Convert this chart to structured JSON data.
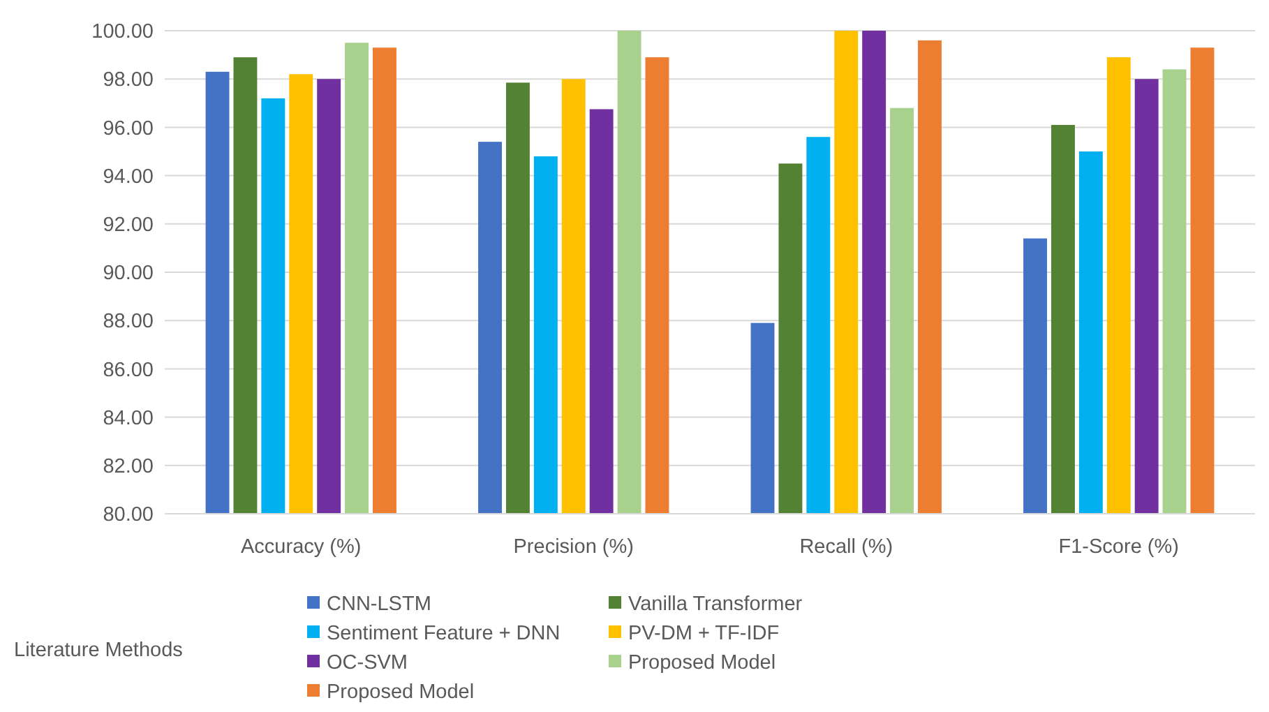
{
  "chart_data": {
    "type": "bar",
    "categories": [
      "Accuracy (%)",
      "Precision (%)",
      "Recall (%)",
      "F1-Score (%)"
    ],
    "series": [
      {
        "name": "CNN-LSTM",
        "color": "#4472c4",
        "values": [
          98.3,
          95.4,
          87.9,
          91.4
        ]
      },
      {
        "name": "Vanilla Transformer",
        "color": "#548235",
        "values": [
          98.9,
          97.85,
          94.5,
          96.1
        ]
      },
      {
        "name": "Sentiment Feature + DNN",
        "color": "#00b0f0",
        "values": [
          97.2,
          94.8,
          95.6,
          95.0
        ]
      },
      {
        "name": "PV-DM + TF-IDF",
        "color": "#ffc000",
        "values": [
          98.2,
          98.0,
          100,
          98.9
        ]
      },
      {
        "name": "OC-SVM",
        "color": "#7030a0",
        "values": [
          98.0,
          96.75,
          100,
          98.0
        ]
      },
      {
        "name": "Proposed Model",
        "color": "#a9d18e",
        "values": [
          99.5,
          100,
          96.8,
          98.4
        ]
      },
      {
        "name": "Proposed Model",
        "color": "#ed7d31",
        "values": [
          99.3,
          98.9,
          99.6,
          99.3
        ]
      }
    ],
    "ylim": [
      80,
      100
    ],
    "yticks": [
      {
        "value": 80,
        "label": "80.00"
      },
      {
        "value": 82,
        "label": "82.00"
      },
      {
        "value": 84,
        "label": "84.00"
      },
      {
        "value": 86,
        "label": "86.00"
      },
      {
        "value": 88,
        "label": "88.00"
      },
      {
        "value": 90,
        "label": "90.00"
      },
      {
        "value": 92,
        "label": "92.00"
      },
      {
        "value": 94,
        "label": "94.00"
      },
      {
        "value": 96,
        "label": "96.00"
      },
      {
        "value": 98,
        "label": "98.00"
      },
      {
        "value": 100,
        "label": "100.00"
      }
    ],
    "grid": "y",
    "legend": "bottom",
    "legend_title": "Literature Methods"
  }
}
